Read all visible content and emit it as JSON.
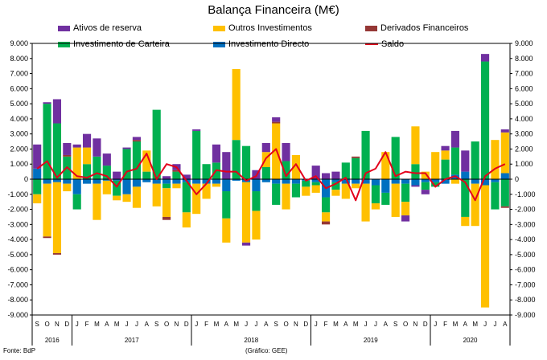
{
  "chart_data": {
    "type": "bar",
    "stacked": true,
    "title": "Balança Financeira (M€)",
    "source": "Fonte: BdP",
    "credit": "Gráfico: GEE",
    "ylim": [
      -9000,
      9000
    ],
    "yticks": [
      -9000,
      -8000,
      -7000,
      -6000,
      -5000,
      -4000,
      -3000,
      -2000,
      -1000,
      0,
      1000,
      2000,
      3000,
      4000,
      5000,
      6000,
      7000,
      8000,
      9000
    ],
    "ytick_labels": [
      "-9.000",
      "-8.000",
      "-7.000",
      "-6.000",
      "-5.000",
      "-4.000",
      "-3.000",
      "-2.000",
      "-1.000",
      "0",
      "1.000",
      "2.000",
      "3.000",
      "4.000",
      "5.000",
      "6.000",
      "7.000",
      "8.000",
      "9.000"
    ],
    "legend_position": "top",
    "categories": [
      "S",
      "O",
      "N",
      "D",
      "J",
      "F",
      "M",
      "A",
      "M",
      "J",
      "J",
      "A",
      "S",
      "O",
      "N",
      "D",
      "J",
      "F",
      "M",
      "A",
      "M",
      "J",
      "J",
      "A",
      "S",
      "O",
      "N",
      "D",
      "J",
      "F",
      "M",
      "A",
      "M",
      "J",
      "J",
      "A",
      "S",
      "O",
      "N",
      "D",
      "J",
      "F",
      "M",
      "A",
      "M",
      "J",
      "J",
      "A"
    ],
    "year_groups": [
      {
        "label": "2016",
        "count": 4
      },
      {
        "label": "2017",
        "count": 12
      },
      {
        "label": "2018",
        "count": 12
      },
      {
        "label": "2019",
        "count": 12
      },
      {
        "label": "2020",
        "count": 8
      }
    ],
    "series": [
      {
        "name": "Investimento Directo",
        "kind": "bar",
        "color": "#0070c0",
        "values": [
          700,
          -300,
          -200,
          -300,
          -1000,
          -300,
          -300,
          -100,
          -100,
          -1000,
          -500,
          -200,
          -300,
          -300,
          -300,
          -200,
          -300,
          -300,
          -300,
          -800,
          -100,
          -200,
          -800,
          -200,
          -300,
          -300,
          -300,
          -100,
          -200,
          -1200,
          -200,
          -300,
          -300,
          -300,
          -400,
          -900,
          -300,
          -300,
          -400,
          -200,
          -200,
          -300,
          300,
          500,
          -300,
          -400,
          -200,
          400
        ]
      },
      {
        "name": "Investimento de Carteira",
        "kind": "bar",
        "color": "#00b050",
        "values": [
          -1000,
          5000,
          3700,
          1500,
          -1000,
          1000,
          1500,
          900,
          -1000,
          2000,
          2500,
          500,
          4600,
          -300,
          500,
          -2000,
          3200,
          1000,
          1100,
          -1800,
          2600,
          2200,
          -1300,
          800,
          -1400,
          1200,
          -900,
          -400,
          -200,
          -1000,
          -500,
          1100,
          1400,
          3200,
          -1200,
          -800,
          2800,
          -1200,
          1000,
          -500,
          -300,
          1300,
          1800,
          -2500,
          2500,
          7800,
          -1800,
          -1800
        ]
      },
      {
        "name": "Outros Investimentos",
        "kind": "bar",
        "color": "#ffc000",
        "values": [
          -600,
          -3500,
          -4700,
          -500,
          2100,
          1100,
          -2400,
          -900,
          -300,
          -500,
          -1400,
          1400,
          -1500,
          -1900,
          -300,
          -1000,
          -2000,
          -1000,
          -200,
          -1600,
          4700,
          -4000,
          -1900,
          1000,
          3700,
          -1700,
          1600,
          -600,
          -500,
          -600,
          -400,
          -1000,
          -300,
          -2500,
          -400,
          1800,
          -2200,
          -900,
          2500,
          500,
          1800,
          600,
          -300,
          -600,
          -2800,
          -8100,
          2600,
          2700
        ]
      },
      {
        "name": "Derivados Financeiros",
        "kind": "bar",
        "color": "#953735",
        "values": [
          0,
          -100,
          -100,
          100,
          0,
          0,
          0,
          0,
          0,
          0,
          100,
          0,
          0,
          -200,
          100,
          0,
          0,
          0,
          0,
          0,
          0,
          0,
          0,
          0,
          100,
          0,
          0,
          0,
          0,
          -200,
          0,
          0,
          100,
          0,
          0,
          0,
          0,
          0,
          0,
          0,
          0,
          0,
          0,
          0,
          0,
          0,
          0,
          -100
        ]
      },
      {
        "name": "Ativos de reserva",
        "kind": "bar",
        "color": "#7030a0",
        "values": [
          1600,
          100,
          1600,
          800,
          200,
          900,
          1200,
          800,
          500,
          100,
          200,
          0,
          0,
          200,
          400,
          300,
          100,
          0,
          1200,
          1800,
          0,
          -200,
          600,
          600,
          300,
          1200,
          0,
          0,
          900,
          400,
          500,
          0,
          0,
          0,
          0,
          0,
          0,
          -400,
          -100,
          -300,
          0,
          300,
          1100,
          1400,
          0,
          500,
          0,
          200
        ]
      },
      {
        "name": "Saldo",
        "kind": "line",
        "color": "#e3001b",
        "values": [
          700,
          1200,
          100,
          800,
          200,
          100,
          400,
          200,
          -500,
          500,
          700,
          1700,
          0,
          1000,
          800,
          -100,
          -1000,
          -300,
          600,
          500,
          500,
          -100,
          200,
          1400,
          2000,
          200,
          1000,
          -100,
          200,
          -600,
          -300,
          100,
          -1400,
          400,
          700,
          1800,
          200,
          500,
          400,
          400,
          -500,
          0,
          200,
          -200,
          -1400,
          200,
          700,
          1000
        ]
      }
    ]
  }
}
